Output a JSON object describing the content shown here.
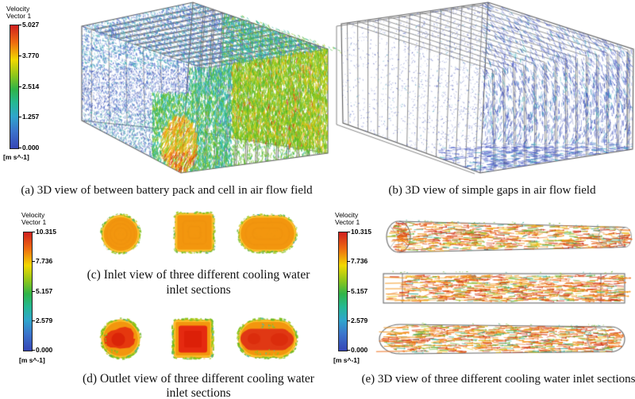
{
  "captions": {
    "a": "(a) 3D view of between battery pack and cell in air flow field",
    "b": "(b) 3D view of simple gaps in air flow field",
    "c1": "(c) Inlet view of three different cooling water",
    "c2": "inlet sections",
    "d1": "(d) Outlet view of three different cooling water",
    "d2": "inlet sections",
    "e": "(e) 3D view of three different cooling water inlet sections"
  },
  "legends": {
    "air": {
      "title1": "Velocity",
      "title2": "Vector 1",
      "ticks": [
        "5.027",
        "3.770",
        "2.514",
        "1.257",
        "0.000"
      ],
      "unit": "[m s^-1]"
    },
    "water_inlet": {
      "title1": "Velocity",
      "title2": "Vector 1",
      "ticks": [
        "10.315",
        "7.736",
        "5.157",
        "2.579",
        "0.000"
      ],
      "unit": "[m s^-1]"
    },
    "water_3d": {
      "title1": "Velocity",
      "title2": "Vector 1",
      "ticks": [
        "10.315",
        "7.736",
        "5.157",
        "2.579",
        "0.000"
      ],
      "unit": "[m s^-1]"
    }
  },
  "colors": {
    "colormap_top_to_bottom": [
      "#d01f1f",
      "#ee6c10",
      "#f2d800",
      "#8cc61c",
      "#30b448",
      "#25b893",
      "#2fa6cc",
      "#3b74cc",
      "#3646b6"
    ],
    "background": "#ffffff",
    "wireframe": "#5a5a5a"
  }
}
